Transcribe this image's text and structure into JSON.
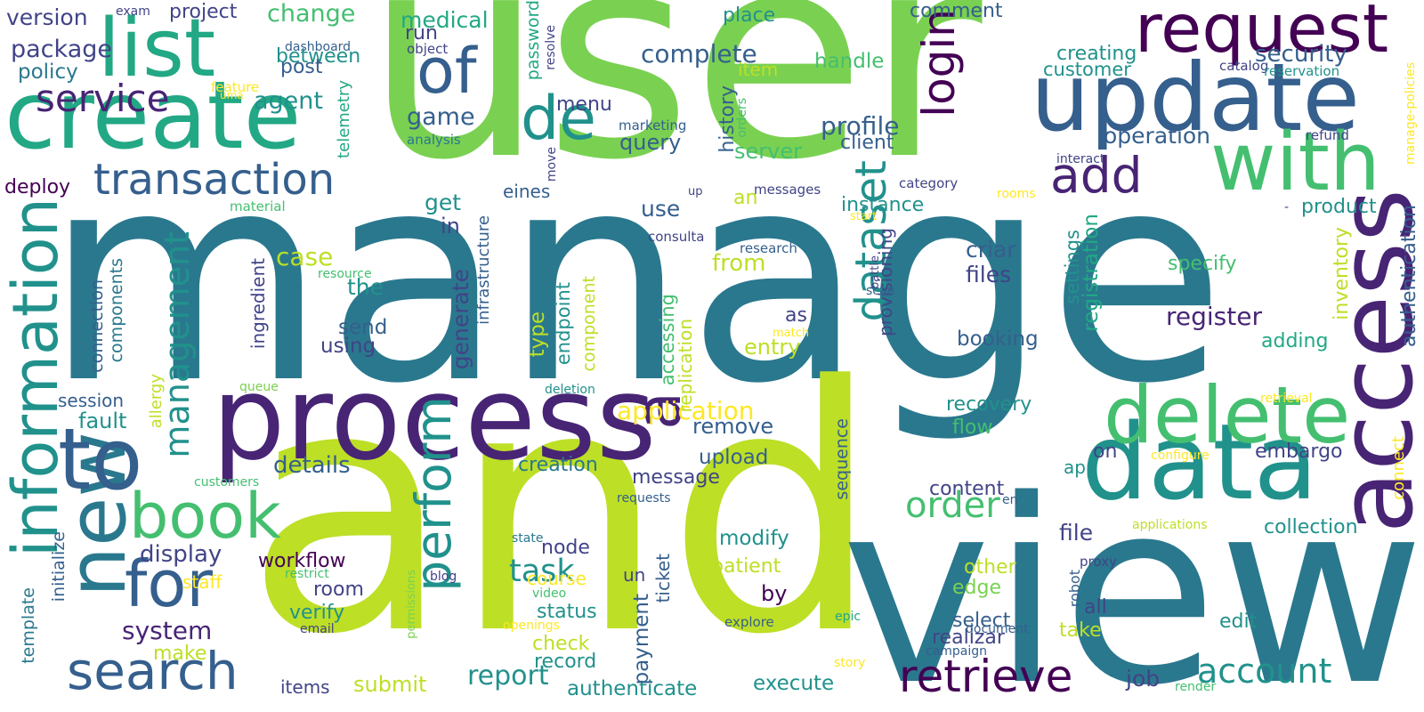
{
  "title": "",
  "palette": {
    "purple": "#482475",
    "darkpurple": "#440154",
    "indigo": "#414487",
    "blue": "#355f8d",
    "teal": "#2a788e",
    "cyan": "#21918c",
    "green": "#22a884",
    "lightgreen": "#44bf70",
    "lime": "#7ad151",
    "yellow": "#bddf26",
    "gold": "#fde725"
  },
  "words": [
    {
      "text": "user",
      "color": "lime"
    },
    {
      "text": "manage",
      "color": "teal"
    },
    {
      "text": "and",
      "color": "yellow"
    },
    {
      "text": "view",
      "color": "teal"
    },
    {
      "text": "process",
      "color": "purple"
    },
    {
      "text": "create",
      "color": "green"
    },
    {
      "text": "list",
      "color": "green"
    },
    {
      "text": "update",
      "color": "blue"
    },
    {
      "text": "request",
      "color": "darkpurple"
    },
    {
      "text": "data",
      "color": "cyan"
    },
    {
      "text": "access",
      "color": "purple"
    },
    {
      "text": "with",
      "color": "lightgreen"
    },
    {
      "text": "delete",
      "color": "lightgreen"
    },
    {
      "text": "information",
      "color": "cyan"
    },
    {
      "text": "new",
      "color": "teal"
    },
    {
      "text": "to",
      "color": "blue"
    },
    {
      "text": "search",
      "color": "blue"
    },
    {
      "text": "book",
      "color": "lightgreen"
    },
    {
      "text": "for",
      "color": "blue"
    },
    {
      "text": "of",
      "color": "blue"
    },
    {
      "text": "a",
      "color": "purple"
    },
    {
      "text": "de",
      "color": "cyan"
    },
    {
      "text": "service",
      "color": "purple"
    },
    {
      "text": "transaction",
      "color": "blue"
    },
    {
      "text": "management",
      "color": "cyan"
    },
    {
      "text": "perform",
      "color": "cyan"
    },
    {
      "text": "dataset",
      "color": "cyan"
    },
    {
      "text": "login",
      "color": "darkpurple"
    },
    {
      "text": "add",
      "color": "purple"
    },
    {
      "text": "retrieve",
      "color": "darkpurple"
    },
    {
      "text": "account",
      "color": "cyan"
    },
    {
      "text": "order",
      "color": "lightgreen"
    },
    {
      "text": "system",
      "color": "purple"
    },
    {
      "text": "report",
      "color": "cyan"
    },
    {
      "text": "task",
      "color": "cyan"
    },
    {
      "text": "operation",
      "color": "blue"
    },
    {
      "text": "security",
      "color": "blue"
    },
    {
      "text": "register",
      "color": "purple"
    },
    {
      "text": "profile",
      "color": "blue"
    },
    {
      "text": "complete",
      "color": "blue"
    },
    {
      "text": "agent",
      "color": "cyan"
    },
    {
      "text": "application",
      "color": "gold"
    },
    {
      "text": "package",
      "color": "indigo"
    },
    {
      "text": "version",
      "color": "indigo"
    },
    {
      "text": "policy",
      "color": "teal"
    },
    {
      "text": "project",
      "color": "indigo"
    },
    {
      "text": "change",
      "color": "lightgreen"
    },
    {
      "text": "between",
      "color": "cyan"
    },
    {
      "text": "post",
      "color": "blue"
    },
    {
      "text": "medical",
      "color": "green"
    },
    {
      "text": "run",
      "color": "indigo"
    },
    {
      "text": "game",
      "color": "blue"
    },
    {
      "text": "menu",
      "color": "indigo"
    },
    {
      "text": "query",
      "color": "blue"
    },
    {
      "text": "client",
      "color": "blue"
    },
    {
      "text": "history",
      "color": "blue"
    },
    {
      "text": "server",
      "color": "lightgreen"
    },
    {
      "text": "an",
      "color": "yellow"
    },
    {
      "text": "handle",
      "color": "lightgreen"
    },
    {
      "text": "instance",
      "color": "cyan"
    },
    {
      "text": "criar",
      "color": "blue"
    },
    {
      "text": "files",
      "color": "indigo"
    },
    {
      "text": "specify",
      "color": "lightgreen"
    },
    {
      "text": "product",
      "color": "cyan"
    },
    {
      "text": "inventory",
      "color": "yellow"
    },
    {
      "text": "authentication",
      "color": "blue"
    },
    {
      "text": "creating",
      "color": "cyan"
    },
    {
      "text": "customer",
      "color": "cyan"
    },
    {
      "text": "catalog",
      "color": "indigo"
    },
    {
      "text": "reservation",
      "color": "cyan"
    },
    {
      "text": "refund",
      "color": "indigo"
    },
    {
      "text": "comment",
      "color": "blue"
    },
    {
      "text": "place",
      "color": "cyan"
    },
    {
      "text": "item",
      "color": "yellow"
    },
    {
      "text": "get",
      "color": "cyan"
    },
    {
      "text": "in",
      "color": "indigo"
    },
    {
      "text": "use",
      "color": "blue"
    },
    {
      "text": "from",
      "color": "yellow"
    },
    {
      "text": "case",
      "color": "yellow"
    },
    {
      "text": "the",
      "color": "cyan"
    },
    {
      "text": "send",
      "color": "blue"
    },
    {
      "text": "using",
      "color": "indigo"
    },
    {
      "text": "as",
      "color": "indigo"
    },
    {
      "text": "entry",
      "color": "yellow"
    },
    {
      "text": "booking",
      "color": "blue"
    },
    {
      "text": "adding",
      "color": "green"
    },
    {
      "text": "recovery",
      "color": "cyan"
    },
    {
      "text": "flow",
      "color": "lightgreen"
    },
    {
      "text": "embargo",
      "color": "indigo"
    },
    {
      "text": "on",
      "color": "indigo"
    },
    {
      "text": "app",
      "color": "cyan"
    },
    {
      "text": "connect",
      "color": "gold"
    },
    {
      "text": "details",
      "color": "blue"
    },
    {
      "text": "creation",
      "color": "teal"
    },
    {
      "text": "remove",
      "color": "blue"
    },
    {
      "text": "upload",
      "color": "blue"
    },
    {
      "text": "message",
      "color": "indigo"
    },
    {
      "text": "content",
      "color": "indigo"
    },
    {
      "text": "display",
      "color": "indigo"
    },
    {
      "text": "workflow",
      "color": "darkpurple"
    },
    {
      "text": "room",
      "color": "indigo"
    },
    {
      "text": "verify",
      "color": "cyan"
    },
    {
      "text": "node",
      "color": "indigo"
    },
    {
      "text": "course",
      "color": "gold"
    },
    {
      "text": "status",
      "color": "cyan"
    },
    {
      "text": "check",
      "color": "yellow"
    },
    {
      "text": "record",
      "color": "cyan"
    },
    {
      "text": "submit",
      "color": "yellow"
    },
    {
      "text": "authenticate",
      "color": "cyan"
    },
    {
      "text": "execute",
      "color": "cyan"
    },
    {
      "text": "modify",
      "color": "cyan"
    },
    {
      "text": "patient",
      "color": "yellow"
    },
    {
      "text": "by",
      "color": "darkpurple"
    },
    {
      "text": "file",
      "color": "indigo"
    },
    {
      "text": "collection",
      "color": "cyan"
    },
    {
      "text": "other",
      "color": "yellow"
    },
    {
      "text": "edge",
      "color": "lime"
    },
    {
      "text": "select",
      "color": "blue"
    },
    {
      "text": "realizar",
      "color": "indigo"
    },
    {
      "text": "take",
      "color": "yellow"
    },
    {
      "text": "edit",
      "color": "cyan"
    },
    {
      "text": "all",
      "color": "indigo"
    },
    {
      "text": "job",
      "color": "indigo"
    },
    {
      "text": "session",
      "color": "blue"
    },
    {
      "text": "fault",
      "color": "cyan"
    },
    {
      "text": "staff",
      "color": "gold"
    },
    {
      "text": "make",
      "color": "yellow"
    },
    {
      "text": "items",
      "color": "indigo"
    },
    {
      "text": "deploy",
      "color": "darkpurple"
    },
    {
      "text": "un",
      "color": "indigo"
    },
    {
      "text": "ticket",
      "color": "blue"
    },
    {
      "text": "payment",
      "color": "blue"
    },
    {
      "text": "generate",
      "color": "indigo"
    },
    {
      "text": "infrastructure",
      "color": "blue"
    },
    {
      "text": "endpoint",
      "color": "cyan"
    },
    {
      "text": "component",
      "color": "yellow"
    },
    {
      "text": "type",
      "color": "yellow"
    },
    {
      "text": "accessing",
      "color": "lightgreen"
    },
    {
      "text": "replication",
      "color": "yellow"
    },
    {
      "text": "eines",
      "color": "blue"
    },
    {
      "text": "password",
      "color": "green"
    },
    {
      "text": "telemetry",
      "color": "green"
    },
    {
      "text": "connection",
      "color": "blue"
    },
    {
      "text": "components",
      "color": "teal"
    },
    {
      "text": "ingredient",
      "color": "indigo"
    },
    {
      "text": "allergy",
      "color": "yellow"
    },
    {
      "text": "initialize",
      "color": "blue"
    },
    {
      "text": "template",
      "color": "teal"
    },
    {
      "text": "provisioning",
      "color": "indigo"
    },
    {
      "text": "registration",
      "color": "green"
    },
    {
      "text": "settings",
      "color": "cyan"
    },
    {
      "text": "sequence",
      "color": "blue"
    },
    {
      "text": "robot",
      "color": "blue"
    },
    {
      "text": "exam",
      "color": "indigo"
    },
    {
      "text": "dashboard",
      "color": "blue"
    },
    {
      "text": "feature",
      "color": "gold"
    },
    {
      "text": "uma",
      "color": "gold"
    },
    {
      "text": "object",
      "color": "indigo"
    },
    {
      "text": "analysis",
      "color": "teal"
    },
    {
      "text": "marketing",
      "color": "blue"
    },
    {
      "text": "orders",
      "color": "lightgreen"
    },
    {
      "text": "resolve",
      "color": "indigo"
    },
    {
      "text": "move",
      "color": "indigo"
    },
    {
      "text": "messages",
      "color": "indigo"
    },
    {
      "text": "up",
      "color": "indigo"
    },
    {
      "text": "category",
      "color": "indigo"
    },
    {
      "text": "interact",
      "color": "indigo"
    },
    {
      "text": "rooms",
      "color": "gold"
    },
    {
      "text": "start",
      "color": "gold"
    },
    {
      "text": "consulta",
      "color": "indigo"
    },
    {
      "text": "research",
      "color": "blue"
    },
    {
      "text": "battle",
      "color": "indigo"
    },
    {
      "text": "scan",
      "color": "blue"
    },
    {
      "text": "resource",
      "color": "lightgreen"
    },
    {
      "text": "material",
      "color": "lightgreen"
    },
    {
      "text": "match",
      "color": "gold"
    },
    {
      "text": "queue",
      "color": "lime"
    },
    {
      "text": "deletion",
      "color": "cyan"
    },
    {
      "text": "customers",
      "color": "lightgreen"
    },
    {
      "text": "requests",
      "color": "blue"
    },
    {
      "text": "state",
      "color": "teal"
    },
    {
      "text": "restrict",
      "color": "lightgreen"
    },
    {
      "text": "blog",
      "color": "indigo"
    },
    {
      "text": "video",
      "color": "lightgreen"
    },
    {
      "text": "openings",
      "color": "gold"
    },
    {
      "text": "email",
      "color": "indigo"
    },
    {
      "text": "permissions",
      "color": "lime"
    },
    {
      "text": "explore",
      "color": "blue"
    },
    {
      "text": "campaign",
      "color": "blue"
    },
    {
      "text": "document",
      "color": "blue"
    },
    {
      "text": "proxy",
      "color": "indigo"
    },
    {
      "text": "epic",
      "color": "green"
    },
    {
      "text": "story",
      "color": "gold"
    },
    {
      "text": "render",
      "color": "lightgreen"
    },
    {
      "text": "applications",
      "color": "yellow"
    },
    {
      "text": "configure",
      "color": "gold"
    },
    {
      "text": "en",
      "color": "blue"
    },
    {
      "text": "retrieval",
      "color": "gold"
    },
    {
      "text": "manage-policies",
      "color": "gold"
    },
    {
      "text": "-",
      "color": "indigo"
    }
  ]
}
